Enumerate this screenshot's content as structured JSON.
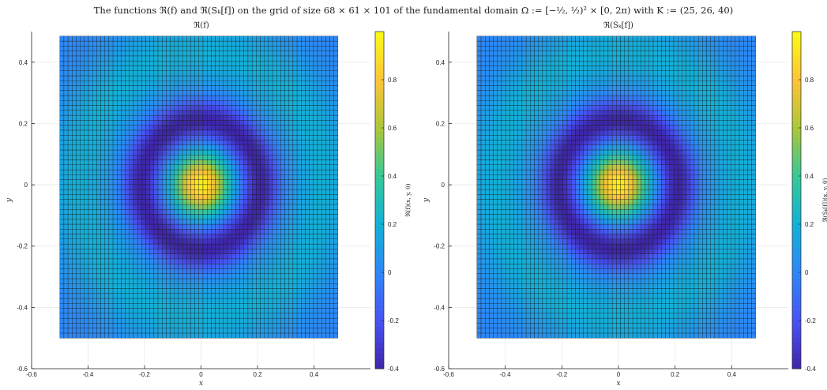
{
  "figure": {
    "suptitle": "The functions ℜ(f) and ℜ(Sₖ[f]) on the grid of size 68 × 61 × 101 of the fundamental domain Ω := [−½, ½)² × [0, 2π) with K := (25, 26, 40)"
  },
  "chart_data": [
    {
      "type": "heatmap",
      "title": "ℜ(f)",
      "xlabel": "x",
      "ylabel": "y",
      "xlim": [
        -0.6,
        0.6
      ],
      "ylim": [
        -0.6,
        0.5
      ],
      "xticks": [
        -0.6,
        -0.4,
        -0.2,
        0,
        0.2,
        0.4
      ],
      "yticks": [
        -0.6,
        -0.4,
        -0.2,
        0,
        0.2,
        0.4
      ],
      "grid_extent": {
        "x": [
          -0.5,
          0.485
        ],
        "y": [
          -0.5,
          0.485
        ]
      },
      "grid_size": [
        68,
        61
      ],
      "field": "radial: peak ≈ 0.95 at center, minimum ≈ -0.4 on ring of radius ≈ 0.2, ≈ 0.2 on outer ring, ≈ 0 at edges",
      "colorbar": {
        "label": "ℜ(f)(x, y, θ)",
        "range": [
          -0.4,
          1.0
        ],
        "ticks": [
          -0.4,
          -0.2,
          0,
          0.2,
          0.4,
          0.6,
          0.8
        ],
        "colormap": "parula"
      },
      "grid": true
    },
    {
      "type": "heatmap",
      "title": "ℜ(Sₖ[f])",
      "xlabel": "x",
      "ylabel": "y",
      "xlim": [
        -0.6,
        0.6
      ],
      "ylim": [
        -0.6,
        0.5
      ],
      "xticks": [
        -0.6,
        -0.4,
        -0.2,
        0,
        0.2,
        0.4
      ],
      "yticks": [
        -0.6,
        -0.4,
        -0.2,
        0,
        0.2,
        0.4
      ],
      "grid_extent": {
        "x": [
          -0.5,
          0.485
        ],
        "y": [
          -0.5,
          0.485
        ]
      },
      "grid_size": [
        68,
        61
      ],
      "field": "radial: peak ≈ 0.95 at center, minimum ≈ -0.4 on ring of radius ≈ 0.2, ≈ 0.2 on outer ring, ≈ 0 at edges",
      "colorbar": {
        "label": "ℜ(Sₖ[f])(x, y, θ)",
        "range": [
          -0.4,
          1.0
        ],
        "ticks": [
          -0.4,
          -0.2,
          0,
          0.2,
          0.4,
          0.6,
          0.8
        ],
        "colormap": "parula"
      },
      "grid": true
    }
  ]
}
